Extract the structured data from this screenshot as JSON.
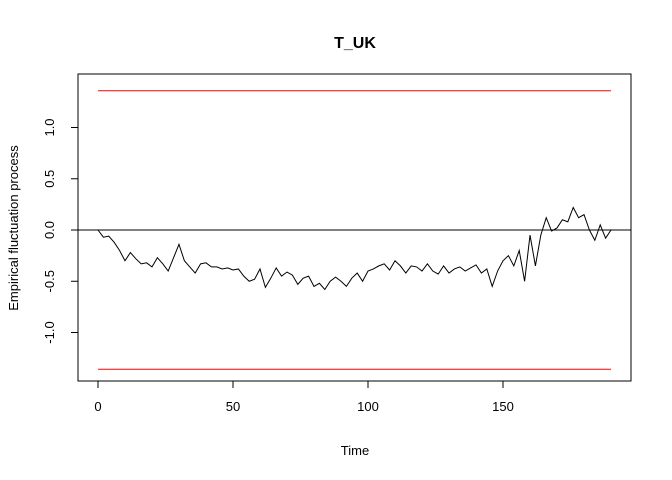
{
  "chart_data": {
    "type": "line",
    "title": "T_UK",
    "x_label": "Time",
    "y_label": "Empirical fluctuation process",
    "x": [
      0,
      2,
      4,
      6,
      8,
      10,
      12,
      14,
      16,
      18,
      20,
      22,
      24,
      26,
      28,
      30,
      32,
      34,
      36,
      38,
      40,
      42,
      44,
      46,
      48,
      50,
      52,
      54,
      56,
      58,
      60,
      62,
      64,
      66,
      68,
      70,
      72,
      74,
      76,
      78,
      80,
      82,
      84,
      86,
      88,
      90,
      92,
      94,
      96,
      98,
      100,
      102,
      104,
      106,
      108,
      110,
      112,
      114,
      116,
      118,
      120,
      122,
      124,
      126,
      128,
      130,
      132,
      134,
      136,
      138,
      140,
      142,
      144,
      146,
      148,
      150,
      152,
      154,
      156,
      158,
      160,
      162,
      164,
      166,
      168,
      170,
      172,
      174,
      176,
      178,
      180,
      182,
      184,
      186,
      188,
      190
    ],
    "series": [
      {
        "color": "#000000",
        "values": [
          0,
          -0.07,
          -0.06,
          -0.12,
          -0.2,
          -0.3,
          -0.22,
          -0.28,
          -0.33,
          -0.32,
          -0.36,
          -0.27,
          -0.33,
          -0.4,
          -0.27,
          -0.14,
          -0.3,
          -0.36,
          -0.42,
          -0.33,
          -0.32,
          -0.36,
          -0.36,
          -0.38,
          -0.37,
          -0.39,
          -0.38,
          -0.45,
          -0.5,
          -0.48,
          -0.38,
          -0.56,
          -0.47,
          -0.37,
          -0.45,
          -0.41,
          -0.44,
          -0.53,
          -0.47,
          -0.45,
          -0.55,
          -0.52,
          -0.58,
          -0.5,
          -0.46,
          -0.5,
          -0.55,
          -0.47,
          -0.42,
          -0.5,
          -0.4,
          -0.38,
          -0.35,
          -0.33,
          -0.39,
          -0.3,
          -0.35,
          -0.42,
          -0.35,
          -0.36,
          -0.4,
          -0.33,
          -0.4,
          -0.43,
          -0.35,
          -0.42,
          -0.38,
          -0.36,
          -0.4,
          -0.37,
          -0.34,
          -0.42,
          -0.38,
          -0.55,
          -0.4,
          -0.3,
          -0.25,
          -0.35,
          -0.2,
          -0.5,
          -0.05,
          -0.35,
          -0.05,
          0.12,
          -0.01,
          0.02,
          0.1,
          0.08,
          0.22,
          0.12,
          0.15,
          0.0,
          -0.1,
          0.05,
          -0.08,
          0.0
        ]
      }
    ],
    "boundaries": [
      1.358,
      -1.358
    ],
    "boundary_color": "#ff0000",
    "reference_line": 0,
    "xlim": [
      -7.4,
      197.4
    ],
    "ylim": [
      -1.473,
      1.522
    ],
    "xticks": [
      0,
      50,
      100,
      150
    ],
    "yticks": [
      {
        "value": -1,
        "label": "-1.0"
      },
      -0.5,
      {
        "value": 0,
        "label": "0.0"
      },
      0.5,
      {
        "value": 1,
        "label": "1.0"
      }
    ]
  }
}
